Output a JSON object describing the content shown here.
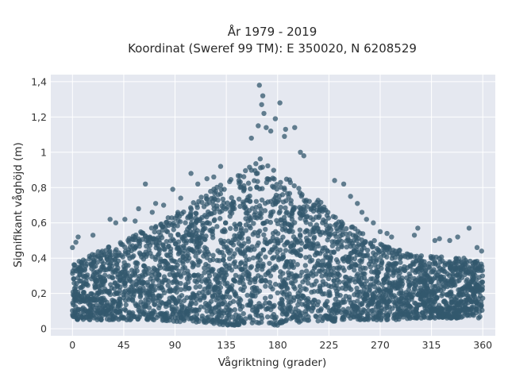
{
  "chart_data": {
    "type": "scatter",
    "title": "År 1979 - 2019",
    "subtitle": "Koordinat (Sweref 99 TM): E 350020, N 6208529",
    "xlabel": "Vågriktning (grader)",
    "ylabel": "Signifikant våghöjd (m)",
    "xlim": [
      -19,
      371
    ],
    "ylim": [
      -0.04,
      1.44
    ],
    "xticks": [
      0,
      45,
      90,
      135,
      180,
      225,
      270,
      315,
      360
    ],
    "xtick_labels": [
      "0",
      "45",
      "90",
      "135",
      "180",
      "225",
      "270",
      "315",
      "360"
    ],
    "yticks": [
      0,
      0.2,
      0.4,
      0.6,
      0.8,
      1,
      1.2,
      1.4
    ],
    "ytick_labels": [
      "0",
      "0,2",
      "0,4",
      "0,6",
      "0,8",
      "1",
      "1,2",
      "1,4"
    ],
    "grid": true,
    "legend": "none",
    "colors": {
      "point": "#33586e",
      "plot_background": "#e5e8f0",
      "grid": "#ffffff"
    },
    "envelope": {
      "x": [
        0,
        15,
        30,
        45,
        60,
        75,
        90,
        105,
        120,
        135,
        150,
        160,
        165,
        170,
        180,
        195,
        210,
        225,
        240,
        255,
        270,
        285,
        300,
        315,
        330,
        345,
        360
      ],
      "upper": [
        0.36,
        0.42,
        0.46,
        0.5,
        0.55,
        0.6,
        0.65,
        0.72,
        0.78,
        0.84,
        0.9,
        0.95,
        0.98,
        0.96,
        0.9,
        0.82,
        0.76,
        0.68,
        0.6,
        0.54,
        0.48,
        0.45,
        0.42,
        0.42,
        0.4,
        0.4,
        0.38
      ],
      "lower": [
        0.05,
        0.05,
        0.05,
        0.05,
        0.05,
        0.05,
        0.04,
        0.04,
        0.03,
        0.02,
        0.02,
        0.02,
        0.02,
        0.02,
        0.02,
        0.03,
        0.04,
        0.04,
        0.05,
        0.05,
        0.05,
        0.05,
        0.06,
        0.06,
        0.06,
        0.06,
        0.06
      ]
    },
    "outliers": [
      {
        "x": 164,
        "y": 1.38
      },
      {
        "x": 167,
        "y": 1.32
      },
      {
        "x": 166,
        "y": 1.27
      },
      {
        "x": 182,
        "y": 1.28
      },
      {
        "x": 168,
        "y": 1.22
      },
      {
        "x": 163,
        "y": 1.15
      },
      {
        "x": 170,
        "y": 1.14
      },
      {
        "x": 174,
        "y": 1.12
      },
      {
        "x": 178,
        "y": 1.19
      },
      {
        "x": 187,
        "y": 1.13
      },
      {
        "x": 195,
        "y": 1.14
      },
      {
        "x": 157,
        "y": 1.08
      },
      {
        "x": 186,
        "y": 1.09
      },
      {
        "x": 200,
        "y": 1.0
      },
      {
        "x": 203,
        "y": 0.98
      },
      {
        "x": 0,
        "y": 0.46
      },
      {
        "x": 3,
        "y": 0.49
      },
      {
        "x": 5,
        "y": 0.52
      },
      {
        "x": 18,
        "y": 0.53
      },
      {
        "x": 33,
        "y": 0.62
      },
      {
        "x": 38,
        "y": 0.6
      },
      {
        "x": 46,
        "y": 0.62
      },
      {
        "x": 55,
        "y": 0.61
      },
      {
        "x": 58,
        "y": 0.68
      },
      {
        "x": 64,
        "y": 0.82
      },
      {
        "x": 70,
        "y": 0.66
      },
      {
        "x": 73,
        "y": 0.71
      },
      {
        "x": 80,
        "y": 0.7
      },
      {
        "x": 88,
        "y": 0.79
      },
      {
        "x": 95,
        "y": 0.74
      },
      {
        "x": 104,
        "y": 0.88
      },
      {
        "x": 110,
        "y": 0.82
      },
      {
        "x": 118,
        "y": 0.85
      },
      {
        "x": 124,
        "y": 0.86
      },
      {
        "x": 130,
        "y": 0.92
      },
      {
        "x": 230,
        "y": 0.84
      },
      {
        "x": 238,
        "y": 0.82
      },
      {
        "x": 244,
        "y": 0.75
      },
      {
        "x": 250,
        "y": 0.71
      },
      {
        "x": 254,
        "y": 0.66
      },
      {
        "x": 258,
        "y": 0.62
      },
      {
        "x": 264,
        "y": 0.6
      },
      {
        "x": 270,
        "y": 0.55
      },
      {
        "x": 276,
        "y": 0.54
      },
      {
        "x": 280,
        "y": 0.52
      },
      {
        "x": 300,
        "y": 0.53
      },
      {
        "x": 303,
        "y": 0.57
      },
      {
        "x": 318,
        "y": 0.5
      },
      {
        "x": 322,
        "y": 0.51
      },
      {
        "x": 331,
        "y": 0.5
      },
      {
        "x": 338,
        "y": 0.52
      },
      {
        "x": 348,
        "y": 0.57
      },
      {
        "x": 355,
        "y": 0.46
      },
      {
        "x": 359,
        "y": 0.44
      }
    ]
  }
}
